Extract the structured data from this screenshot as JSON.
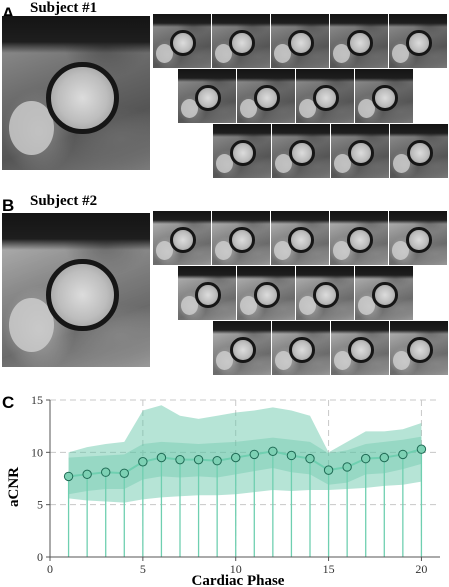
{
  "panels": [
    {
      "letter": "A",
      "title": "Subject #1"
    },
    {
      "letter": "B",
      "title": "Subject #2"
    },
    {
      "letter": "C",
      "title": ""
    }
  ],
  "chart_data": {
    "type": "line",
    "title": "",
    "xlabel": "Cardiac Phase",
    "ylabel": "aCNR",
    "xlim": [
      0,
      21
    ],
    "ylim": [
      0,
      15
    ],
    "xticks": [
      0,
      5,
      10,
      15,
      20
    ],
    "yticks": [
      0,
      5,
      10,
      15
    ],
    "grid": true,
    "x": [
      1,
      2,
      3,
      4,
      5,
      6,
      7,
      8,
      9,
      10,
      11,
      12,
      13,
      14,
      15,
      16,
      17,
      18,
      19,
      20
    ],
    "series": [
      {
        "name": "",
        "values": [
          7.7,
          7.9,
          8.1,
          8.0,
          9.1,
          9.5,
          9.3,
          9.3,
          9.2,
          9.5,
          9.8,
          10.1,
          9.7,
          9.4,
          8.3,
          8.6,
          9.4,
          9.5,
          9.8,
          10.3
        ]
      }
    ],
    "band_outer": {
      "upper": [
        10.0,
        10.5,
        10.8,
        11.0,
        14.0,
        14.5,
        13.5,
        13.2,
        13.5,
        13.8,
        14.0,
        14.3,
        14.0,
        13.5,
        10.0,
        11.0,
        12.0,
        12.0,
        12.2,
        12.8
      ],
      "lower": [
        5.6,
        5.4,
        5.3,
        5.2,
        5.5,
        5.7,
        5.8,
        5.9,
        5.9,
        6.0,
        6.2,
        6.4,
        6.3,
        6.4,
        6.4,
        6.5,
        6.6,
        6.8,
        6.9,
        7.2
      ]
    },
    "band_inner": {
      "upper": [
        9.5,
        9.6,
        9.7,
        9.8,
        10.8,
        11.0,
        10.9,
        10.8,
        10.9,
        11.0,
        11.2,
        11.4,
        11.2,
        11.0,
        9.9,
        10.2,
        10.8,
        11.0,
        11.2,
        11.5
      ],
      "lower": [
        6.0,
        6.3,
        6.5,
        6.5,
        7.4,
        7.7,
        7.6,
        7.7,
        7.6,
        7.9,
        8.2,
        8.5,
        8.1,
        7.9,
        6.9,
        7.1,
        7.9,
        8.0,
        8.4,
        8.9
      ]
    },
    "colors": {
      "band": "#5ec4a4",
      "line": "#6fcfb0",
      "marker": "#7dd1b4",
      "marker_edge": "#1f6b55"
    }
  }
}
